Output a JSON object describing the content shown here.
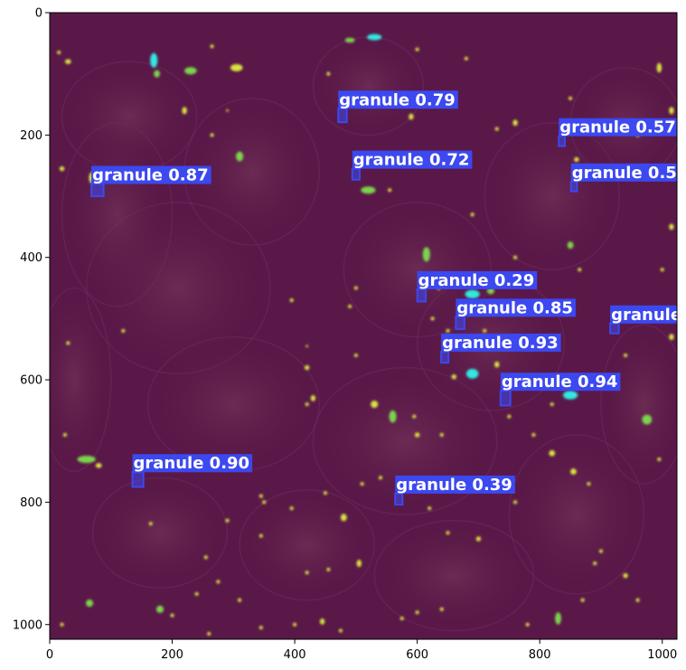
{
  "image": {
    "background_color": "#5a1848",
    "x_range": [
      0,
      1024
    ],
    "y_range": [
      0,
      1024
    ]
  },
  "axes": {
    "x_ticks": [
      {
        "value": 0,
        "label": "0"
      },
      {
        "value": 200,
        "label": "200"
      },
      {
        "value": 400,
        "label": "400"
      },
      {
        "value": 600,
        "label": "600"
      },
      {
        "value": 800,
        "label": "800"
      },
      {
        "value": 1000,
        "label": "1000"
      }
    ],
    "y_ticks": [
      {
        "value": 0,
        "label": "0"
      },
      {
        "value": 200,
        "label": "200"
      },
      {
        "value": 400,
        "label": "400"
      },
      {
        "value": 600,
        "label": "600"
      },
      {
        "value": 800,
        "label": "800"
      },
      {
        "value": 1000,
        "label": "1000"
      }
    ]
  },
  "detections": [
    {
      "label": "granule 0.79",
      "x": 478,
      "y": 168,
      "w": 14,
      "h": 22
    },
    {
      "label": "granule 0.57",
      "x": 836,
      "y": 210,
      "w": 10,
      "h": 16
    },
    {
      "label": "granule 0.5",
      "x": 856,
      "y": 284,
      "w": 10,
      "h": 16
    },
    {
      "label": "granule 0.72",
      "x": 500,
      "y": 264,
      "w": 12,
      "h": 18
    },
    {
      "label": "granule 0.87",
      "x": 78,
      "y": 290,
      "w": 20,
      "h": 20
    },
    {
      "label": "granule 0.29",
      "x": 607,
      "y": 462,
      "w": 14,
      "h": 20
    },
    {
      "label": "granule 0.85",
      "x": 670,
      "y": 507,
      "w": 14,
      "h": 20
    },
    {
      "label": "granule",
      "x": 922,
      "y": 516,
      "w": 14,
      "h": 16
    },
    {
      "label": "granule 0.93",
      "x": 645,
      "y": 563,
      "w": 12,
      "h": 18
    },
    {
      "label": "granule 0.94",
      "x": 744,
      "y": 630,
      "w": 16,
      "h": 24
    },
    {
      "label": "granule 0.90",
      "x": 144,
      "y": 763,
      "w": 18,
      "h": 24
    },
    {
      "label": "granule 0.39",
      "x": 570,
      "y": 795,
      "w": 12,
      "h": 18
    }
  ],
  "colors": {
    "box": "#3c48f0",
    "label_bg": "#3c48f0",
    "label_text": "#ffffff",
    "granule_yellow": "#d8e43c",
    "granule_cyan": "#30e8e0",
    "granule_green": "#7cd44c"
  }
}
